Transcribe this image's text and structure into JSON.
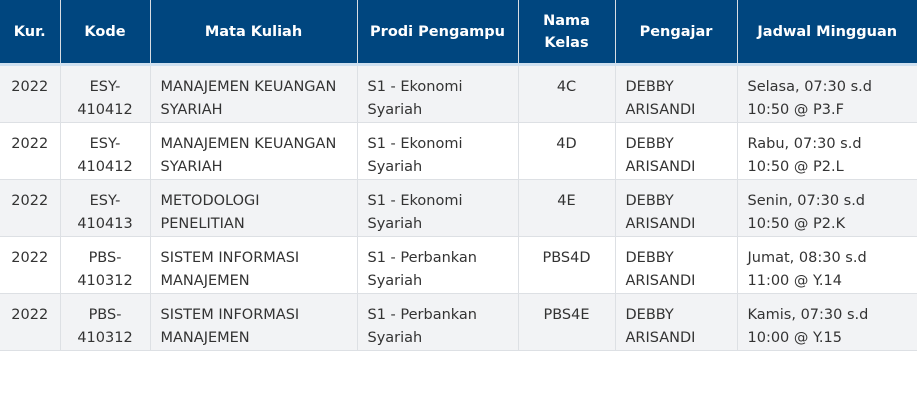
{
  "colors": {
    "header_bg": "#00467f",
    "row_alt_bg": "#f2f3f5"
  },
  "table": {
    "headers": [
      "Kur.",
      "Kode",
      "Mata Kuliah",
      "Prodi Pengampu",
      "Nama Kelas",
      "Pengajar",
      "Jadwal Mingguan"
    ],
    "rows": [
      [
        "2022",
        "ESY-410412",
        "MANAJEMEN KEUANGAN SYARIAH",
        "S1 - Ekonomi Syariah",
        "4C",
        "DEBBY ARISANDI",
        "Selasa, 07:30 s.d 10:50 @ P3.F"
      ],
      [
        "2022",
        "ESY-410412",
        "MANAJEMEN KEUANGAN SYARIAH",
        "S1 - Ekonomi Syariah",
        "4D",
        "DEBBY ARISANDI",
        "Rabu, 07:30 s.d 10:50 @ P2.L"
      ],
      [
        "2022",
        "ESY-410413",
        "METODOLOGI PENELITIAN",
        "S1 - Ekonomi Syariah",
        "4E",
        "DEBBY ARISANDI",
        "Senin, 07:30 s.d 10:50 @ P2.K"
      ],
      [
        "2022",
        "PBS-410312",
        "SISTEM INFORMASI MANAJEMEN",
        "S1 - Perbankan Syariah",
        "PBS4D",
        "DEBBY ARISANDI",
        "Jumat, 08:30 s.d 11:00 @ Y.14"
      ],
      [
        "2022",
        "PBS-410312",
        "SISTEM INFORMASI MANAJEMEN",
        "S1 - Perbankan Syariah",
        "PBS4E",
        "DEBBY ARISANDI",
        "Kamis, 07:30 s.d 10:00 @ Y.15"
      ]
    ]
  }
}
